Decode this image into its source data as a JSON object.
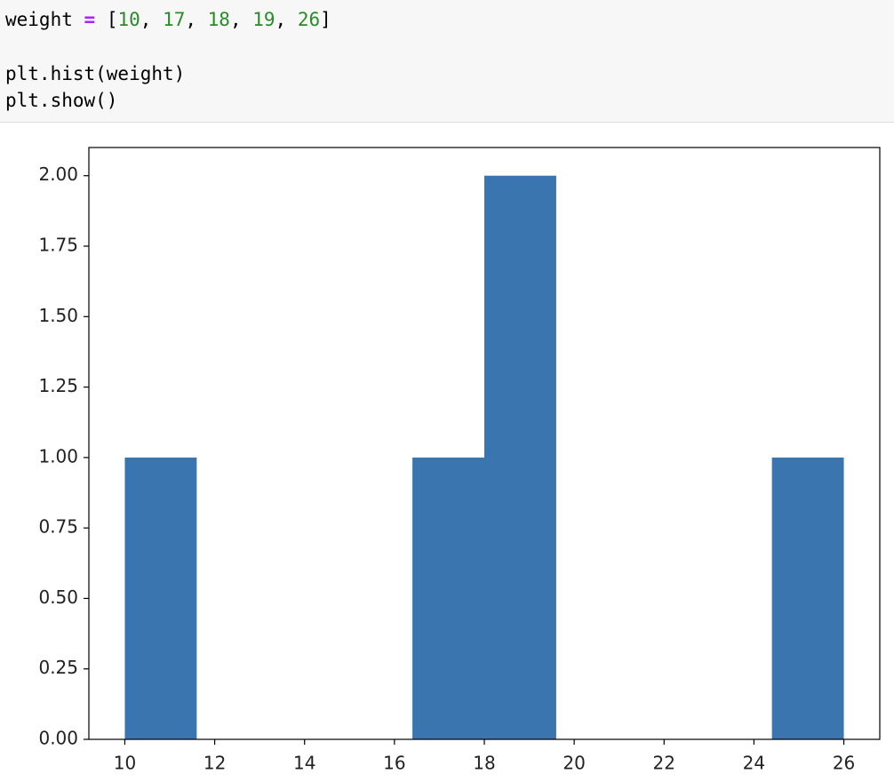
{
  "code": {
    "lines": [
      "weight = [10, 17, 18, 19, 26]",
      "plt.hist(weight)",
      "plt.show()"
    ]
  },
  "chart_data": {
    "type": "histogram",
    "bins": [
      10,
      11.6,
      13.2,
      14.8,
      16.4,
      18,
      19.6,
      21.2,
      22.8,
      24.4,
      26
    ],
    "counts": [
      1,
      0,
      0,
      0,
      1,
      2,
      0,
      0,
      0,
      1
    ],
    "color": "#3a75b0",
    "xlim": [
      9.2,
      26.8
    ],
    "xticks": [
      10,
      12,
      14,
      16,
      18,
      20,
      22,
      24,
      26
    ],
    "ylim": [
      0,
      2.1
    ],
    "yticks": [
      {
        "value": 0,
        "label": "0.00"
      },
      {
        "value": 0.25,
        "label": "0.25"
      },
      {
        "value": 0.5,
        "label": "0.50"
      },
      {
        "value": 0.75,
        "label": "0.75"
      },
      {
        "value": 1,
        "label": "1.00"
      },
      {
        "value": 1.25,
        "label": "1.25"
      },
      {
        "value": 1.5,
        "label": "1.50"
      },
      {
        "value": 1.75,
        "label": "1.75"
      },
      {
        "value": 2,
        "label": "2.00"
      }
    ],
    "grid": false
  }
}
